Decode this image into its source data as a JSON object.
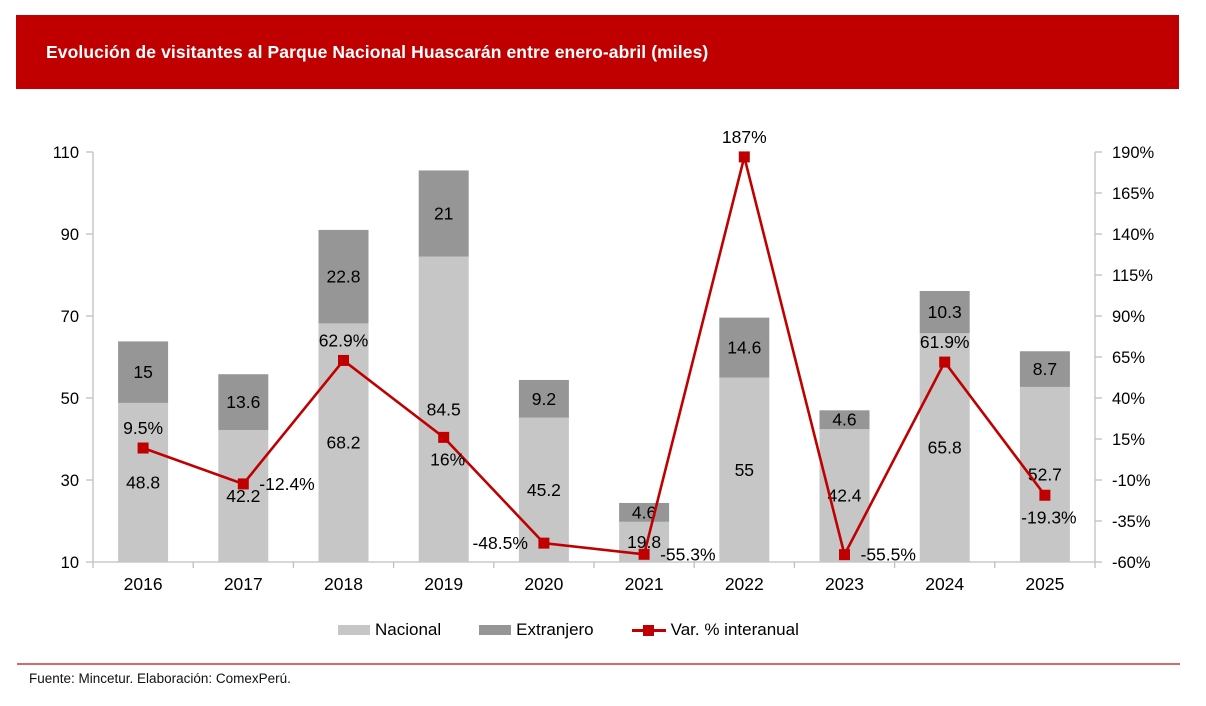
{
  "banner": {
    "title": "Evolución de visitantes al Parque Nacional Huascarán entre enero-abril (miles)"
  },
  "legend": {
    "nacional": "Nacional",
    "extranjero": "Extranjero",
    "line": "Var. % interanual"
  },
  "footer": {
    "source": "Fuente: Mincetur. Elaboración: ComexPerú."
  },
  "colors": {
    "banner_red": "#C00000",
    "line_red": "#C00000",
    "nacional_gray": "#C6C6C6",
    "extranjero_gray": "#969696",
    "axis_gray": "#BFBFBF",
    "divider_red": "#D66A6A",
    "label_black": "#000000"
  },
  "chart_data": {
    "type": "combo-stacked-bar-line",
    "title": "Evolución de visitantes al Parque Nacional Huascarán entre enero-abril (miles)",
    "categories": [
      "2016",
      "2017",
      "2018",
      "2019",
      "2020",
      "2021",
      "2022",
      "2023",
      "2024",
      "2025"
    ],
    "series": [
      {
        "name": "Nacional",
        "type": "bar",
        "values": [
          48.8,
          42.2,
          68.2,
          84.5,
          45.2,
          19.8,
          55,
          42.4,
          65.8,
          52.7
        ],
        "labels": [
          "48.8",
          "42.2",
          "68.2",
          "84.5",
          "45.2",
          "19.8",
          "55",
          "42.4",
          "65.8",
          "52.7"
        ]
      },
      {
        "name": "Extranjero",
        "type": "bar",
        "values": [
          15,
          13.6,
          22.8,
          21,
          9.2,
          4.6,
          14.6,
          4.6,
          10.3,
          8.7
        ],
        "labels": [
          "15",
          "13.6",
          "22.8",
          "21",
          "9.2",
          "4.6",
          "14.6",
          "4.6",
          "10.3",
          "8.7"
        ]
      },
      {
        "name": "Var. % interanual",
        "type": "line",
        "values": [
          9.5,
          -12.4,
          62.9,
          16,
          -48.5,
          -55.3,
          187,
          -55.5,
          61.9,
          -19.3
        ],
        "labels": [
          "9.5%",
          "-12.4%",
          "62.9%",
          "16%",
          "-48.5%",
          "-55.3%",
          "187%",
          "-55.5%",
          "61.9%",
          "-19.3%"
        ],
        "label_positions": [
          "above",
          "right",
          "above",
          "below",
          "left",
          "right",
          "above",
          "right",
          "above",
          "below"
        ]
      }
    ],
    "left_axis": {
      "min": 10,
      "max": 110,
      "ticks": [
        10,
        30,
        50,
        70,
        90,
        110
      ]
    },
    "right_axis": {
      "min": -60,
      "max": 190,
      "ticks": [
        -60,
        -35,
        -10,
        15,
        40,
        65,
        90,
        115,
        140,
        165,
        190
      ],
      "tick_labels": [
        "-60%",
        "-35%",
        "-10%",
        "15%",
        "40%",
        "65%",
        "90%",
        "115%",
        "140%",
        "165%",
        "190%"
      ]
    },
    "legend_position": "bottom",
    "grid": false
  }
}
